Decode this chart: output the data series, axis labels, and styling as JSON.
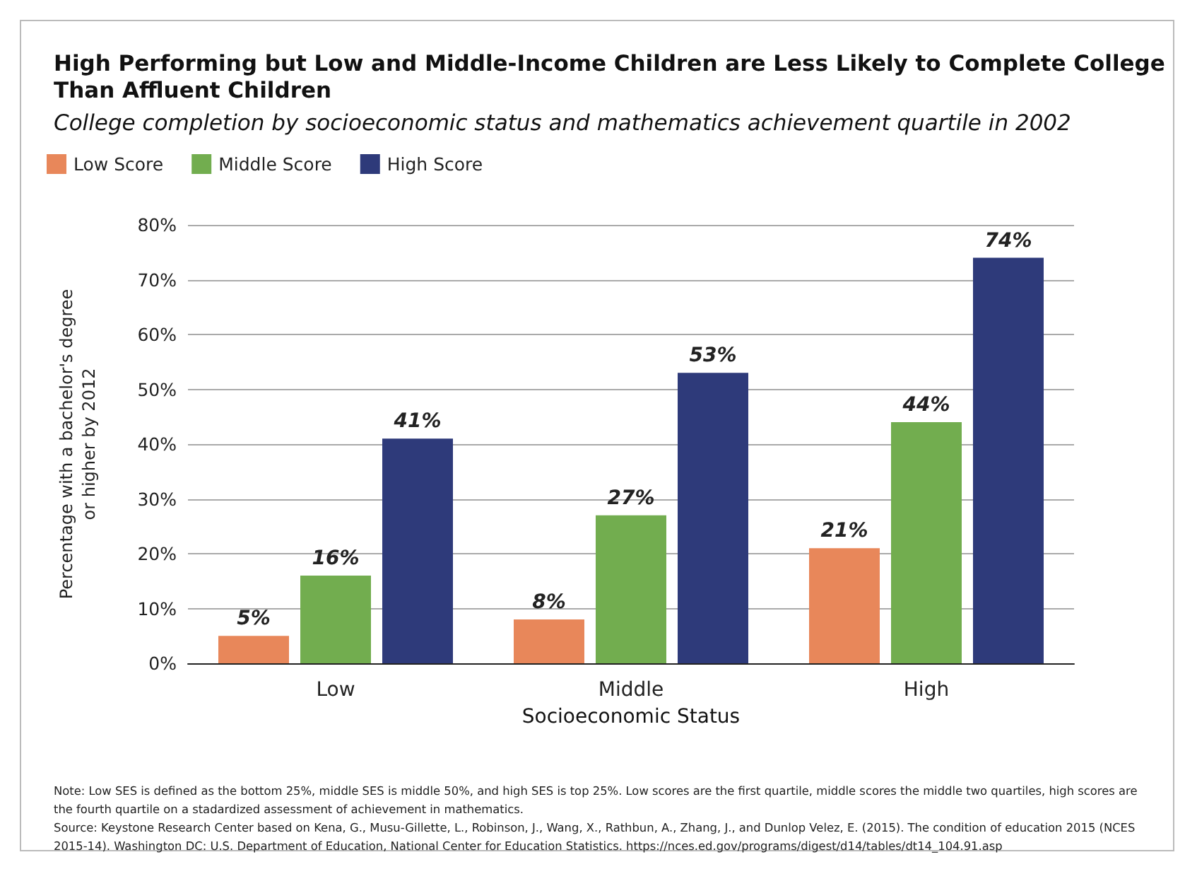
{
  "chart_data": {
    "type": "bar",
    "title": "High Performing but Low and Middle-Income Children are Less Likely to Complete College Than Affluent Children",
    "subtitle": "College completion by socioeconomic status and mathematics achievement quartile in 2002",
    "xlabel": "Socioeconomic Status",
    "ylabel": "Percentage with a bachelor's degree\nor higher by 2012",
    "categories": [
      "Low",
      "Middle",
      "High"
    ],
    "series": [
      {
        "name": "Low Score",
        "color": "#e8875a",
        "values": [
          5,
          8,
          21
        ],
        "value_labels": [
          "5%",
          "8%",
          "21%"
        ]
      },
      {
        "name": "Middle Score",
        "color": "#72ad4f",
        "values": [
          16,
          27,
          44
        ],
        "value_labels": [
          "16%",
          "27%",
          "44%"
        ]
      },
      {
        "name": "High Score",
        "color": "#2e3a7a",
        "values": [
          41,
          53,
          74
        ],
        "value_labels": [
          "41%",
          "53%",
          "74%"
        ]
      }
    ],
    "ylim": [
      0,
      80
    ],
    "yticks": [
      {
        "value": 0,
        "label": "0%"
      },
      {
        "value": 10,
        "label": "10%"
      },
      {
        "value": 20,
        "label": "20%"
      },
      {
        "value": 30,
        "label": "30%"
      },
      {
        "value": 40,
        "label": "40%"
      },
      {
        "value": 50,
        "label": "50%"
      },
      {
        "value": 60,
        "label": "60%"
      },
      {
        "value": 70,
        "label": "70%"
      },
      {
        "value": 80,
        "label": "80%"
      }
    ],
    "grid": "y",
    "legend": "top left",
    "annotations": [
      "Note: Low SES is defined as the bottom 25%, middle SES is middle 50%, and high SES is top 25%. Low scores are the first quartile, middle scores the middle two quartiles, high scores are the fourth quartile on a stadardized assessment of achievement in mathematics.",
      "Source: Keystone Research Center based on Kena, G., Musu-Gillette, L., Robinson, J., Wang, X., Rathbun, A., Zhang, J., and Dunlop Velez, E. (2015). The condition of education 2015 (NCES 2015-14). Washington DC: U.S. Department of Education, National Center for Education Statistics. https://nces.ed.gov/programs/digest/d14/tables/dt14_104.91.asp"
    ]
  }
}
